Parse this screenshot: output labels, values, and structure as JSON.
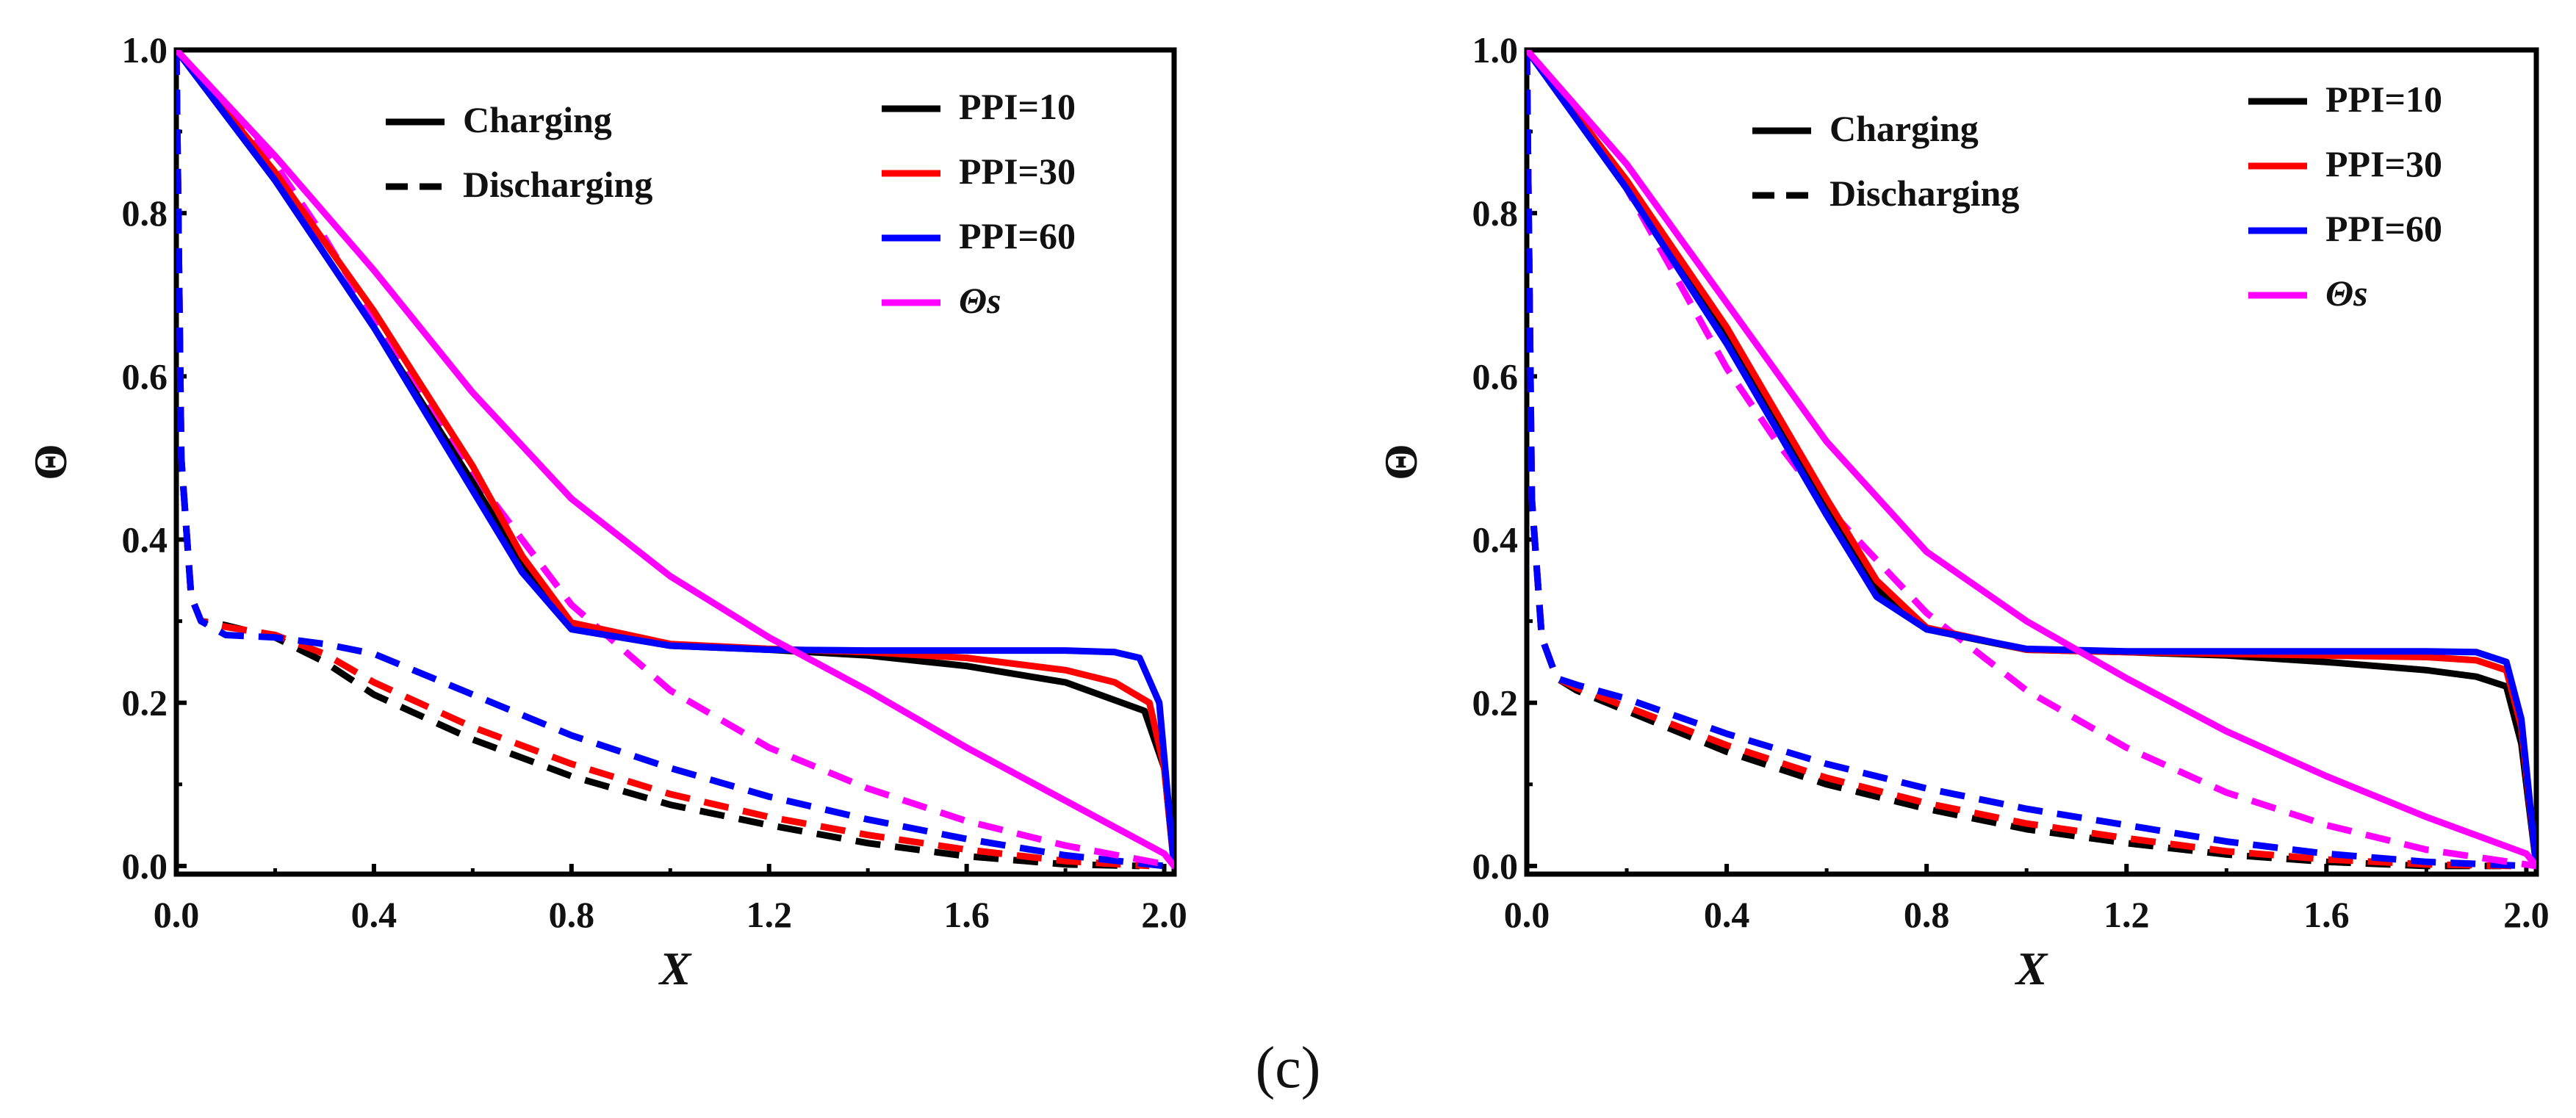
{
  "figure": {
    "caption": "(c)"
  },
  "colors": {
    "PPI=10": "#000000",
    "PPI=30": "#ff0000",
    "PPI=60": "#0000ff",
    "theta_s": "#ff00ff"
  },
  "chart_data": [
    {
      "type": "line",
      "xlabel": "X",
      "ylabel": "Θ",
      "xlim": [
        0,
        2.02
      ],
      "ylim": [
        -0.01,
        1.0
      ],
      "xticks": [
        "0.0",
        "0.4",
        "0.8",
        "1.2",
        "1.6",
        "2.0"
      ],
      "yticks": [
        "0.0",
        "0.2",
        "0.4",
        "0.6",
        "0.8",
        "1.0"
      ],
      "style_legend": [
        {
          "label": "Charging",
          "style": "solid"
        },
        {
          "label": "Discharging",
          "style": "dashed"
        }
      ],
      "series_legend": [
        {
          "label": "PPI=10",
          "color_key": "PPI=10"
        },
        {
          "label": "PPI=30",
          "color_key": "PPI=30"
        },
        {
          "label": "PPI=60",
          "color_key": "PPI=60"
        },
        {
          "label": "Θs",
          "color_key": "theta_s",
          "italic": true
        }
      ],
      "series": [
        {
          "color_key": "PPI=10",
          "style": "solid",
          "x": [
            0,
            0.2,
            0.4,
            0.6,
            0.7,
            0.8,
            1.0,
            1.2,
            1.4,
            1.6,
            1.8,
            1.96,
            2.0,
            2.02
          ],
          "y": [
            1.0,
            0.84,
            0.66,
            0.47,
            0.37,
            0.293,
            0.27,
            0.265,
            0.258,
            0.245,
            0.225,
            0.19,
            0.12,
            0.0
          ]
        },
        {
          "color_key": "PPI=30",
          "style": "solid",
          "x": [
            0,
            0.2,
            0.4,
            0.6,
            0.7,
            0.8,
            1.0,
            1.2,
            1.4,
            1.6,
            1.8,
            1.9,
            1.97,
            2.0,
            2.02
          ],
          "y": [
            1.0,
            0.85,
            0.68,
            0.49,
            0.38,
            0.298,
            0.272,
            0.266,
            0.262,
            0.255,
            0.24,
            0.225,
            0.2,
            0.12,
            0.0
          ]
        },
        {
          "color_key": "PPI=60",
          "style": "solid",
          "x": [
            0,
            0.2,
            0.4,
            0.6,
            0.7,
            0.8,
            1.0,
            1.2,
            1.4,
            1.6,
            1.8,
            1.9,
            1.95,
            1.99,
            2.02
          ],
          "y": [
            1.0,
            0.84,
            0.66,
            0.46,
            0.36,
            0.29,
            0.27,
            0.265,
            0.264,
            0.264,
            0.264,
            0.262,
            0.255,
            0.2,
            0.0
          ]
        },
        {
          "color_key": "theta_s",
          "style": "solid",
          "x": [
            0,
            0.2,
            0.4,
            0.6,
            0.8,
            1.0,
            1.2,
            1.4,
            1.6,
            1.8,
            2.0,
            2.02
          ],
          "y": [
            1.0,
            0.87,
            0.73,
            0.58,
            0.45,
            0.355,
            0.28,
            0.215,
            0.145,
            0.08,
            0.015,
            0.0
          ]
        },
        {
          "color_key": "PPI=10",
          "style": "dashed",
          "x": [
            0,
            0.01,
            0.03,
            0.05,
            0.1,
            0.2,
            0.3,
            0.4,
            0.6,
            0.8,
            1.0,
            1.2,
            1.4,
            1.6,
            1.8,
            1.95
          ],
          "y": [
            1.0,
            0.5,
            0.33,
            0.3,
            0.295,
            0.28,
            0.25,
            0.21,
            0.155,
            0.11,
            0.075,
            0.05,
            0.028,
            0.012,
            0.002,
            0.0
          ]
        },
        {
          "color_key": "PPI=30",
          "style": "dashed",
          "x": [
            0,
            0.01,
            0.03,
            0.05,
            0.1,
            0.2,
            0.3,
            0.4,
            0.6,
            0.8,
            1.0,
            1.2,
            1.4,
            1.6,
            1.8,
            1.97
          ],
          "y": [
            1.0,
            0.5,
            0.33,
            0.3,
            0.293,
            0.283,
            0.26,
            0.225,
            0.17,
            0.125,
            0.088,
            0.06,
            0.038,
            0.02,
            0.006,
            0.0
          ]
        },
        {
          "color_key": "PPI=60",
          "style": "dashed",
          "x": [
            0,
            0.01,
            0.03,
            0.05,
            0.1,
            0.2,
            0.3,
            0.4,
            0.6,
            0.8,
            1.0,
            1.2,
            1.4,
            1.6,
            1.8,
            2.0
          ],
          "y": [
            1.0,
            0.5,
            0.33,
            0.3,
            0.283,
            0.28,
            0.272,
            0.26,
            0.21,
            0.16,
            0.12,
            0.085,
            0.057,
            0.033,
            0.013,
            0.0
          ]
        },
        {
          "color_key": "theta_s",
          "style": "dashed",
          "x": [
            0,
            0.1,
            0.2,
            0.3,
            0.4,
            0.5,
            0.6,
            0.8,
            1.0,
            1.2,
            1.4,
            1.6,
            1.8,
            2.02
          ],
          "y": [
            1.0,
            0.93,
            0.86,
            0.77,
            0.67,
            0.57,
            0.48,
            0.32,
            0.215,
            0.145,
            0.095,
            0.055,
            0.025,
            0.0
          ]
        }
      ]
    },
    {
      "type": "line",
      "xlabel": "X",
      "ylabel": "Θ",
      "xlim": [
        0,
        2.02
      ],
      "ylim": [
        -0.01,
        1.0
      ],
      "xticks": [
        "0.0",
        "0.4",
        "0.8",
        "1.2",
        "1.6",
        "2.0"
      ],
      "yticks": [
        "0.0",
        "0.2",
        "0.4",
        "0.6",
        "0.8",
        "1.0"
      ],
      "style_legend": [
        {
          "label": "Charging",
          "style": "solid"
        },
        {
          "label": "Discharging",
          "style": "dashed"
        }
      ],
      "series_legend": [
        {
          "label": "PPI=10",
          "color_key": "PPI=10"
        },
        {
          "label": "PPI=30",
          "color_key": "PPI=30"
        },
        {
          "label": "PPI=60",
          "color_key": "PPI=60"
        },
        {
          "label": "Θs",
          "color_key": "theta_s",
          "italic": true
        }
      ],
      "series": [
        {
          "color_key": "PPI=10",
          "style": "solid",
          "x": [
            0,
            0.2,
            0.4,
            0.6,
            0.7,
            0.8,
            1.0,
            1.2,
            1.4,
            1.6,
            1.8,
            1.9,
            1.96,
            1.99,
            2.02
          ],
          "y": [
            1.0,
            0.84,
            0.65,
            0.44,
            0.34,
            0.29,
            0.265,
            0.262,
            0.258,
            0.25,
            0.24,
            0.232,
            0.22,
            0.15,
            0.0
          ]
        },
        {
          "color_key": "PPI=30",
          "style": "solid",
          "x": [
            0,
            0.2,
            0.4,
            0.6,
            0.7,
            0.8,
            1.0,
            1.2,
            1.4,
            1.6,
            1.8,
            1.9,
            1.96,
            1.99,
            2.02
          ],
          "y": [
            1.0,
            0.84,
            0.66,
            0.45,
            0.35,
            0.292,
            0.265,
            0.262,
            0.26,
            0.258,
            0.256,
            0.252,
            0.24,
            0.17,
            0.0
          ]
        },
        {
          "color_key": "PPI=60",
          "style": "solid",
          "x": [
            0,
            0.2,
            0.4,
            0.6,
            0.7,
            0.8,
            1.0,
            1.2,
            1.4,
            1.6,
            1.8,
            1.9,
            1.96,
            1.99,
            2.02
          ],
          "y": [
            1.0,
            0.83,
            0.64,
            0.43,
            0.33,
            0.29,
            0.266,
            0.263,
            0.263,
            0.263,
            0.263,
            0.262,
            0.25,
            0.18,
            0.0
          ]
        },
        {
          "color_key": "theta_s",
          "style": "solid",
          "x": [
            0,
            0.2,
            0.4,
            0.6,
            0.8,
            1.0,
            1.2,
            1.4,
            1.6,
            1.8,
            2.0,
            2.02
          ],
          "y": [
            1.0,
            0.86,
            0.69,
            0.52,
            0.385,
            0.3,
            0.23,
            0.165,
            0.11,
            0.06,
            0.015,
            0.0
          ]
        },
        {
          "color_key": "PPI=10",
          "style": "dashed",
          "x": [
            0,
            0.01,
            0.03,
            0.06,
            0.1,
            0.2,
            0.4,
            0.6,
            0.8,
            1.0,
            1.2,
            1.4,
            1.6,
            1.8,
            1.95
          ],
          "y": [
            1.0,
            0.45,
            0.28,
            0.23,
            0.215,
            0.19,
            0.14,
            0.1,
            0.07,
            0.045,
            0.028,
            0.014,
            0.005,
            0.0,
            0.0
          ]
        },
        {
          "color_key": "PPI=30",
          "style": "dashed",
          "x": [
            0,
            0.01,
            0.03,
            0.06,
            0.1,
            0.2,
            0.4,
            0.6,
            0.8,
            1.0,
            1.2,
            1.4,
            1.6,
            1.8,
            1.97
          ],
          "y": [
            1.0,
            0.45,
            0.28,
            0.23,
            0.218,
            0.195,
            0.148,
            0.108,
            0.077,
            0.052,
            0.034,
            0.018,
            0.008,
            0.002,
            0.0
          ]
        },
        {
          "color_key": "PPI=60",
          "style": "dashed",
          "x": [
            0,
            0.01,
            0.03,
            0.06,
            0.1,
            0.2,
            0.4,
            0.6,
            0.8,
            1.0,
            1.2,
            1.4,
            1.6,
            1.8,
            2.0
          ],
          "y": [
            1.0,
            0.45,
            0.28,
            0.23,
            0.222,
            0.205,
            0.162,
            0.125,
            0.095,
            0.07,
            0.05,
            0.03,
            0.015,
            0.005,
            0.0
          ]
        },
        {
          "color_key": "theta_s",
          "style": "dashed",
          "x": [
            0,
            0.1,
            0.2,
            0.3,
            0.4,
            0.5,
            0.6,
            0.8,
            1.0,
            1.2,
            1.4,
            1.6,
            1.8,
            2.02
          ],
          "y": [
            1.0,
            0.92,
            0.83,
            0.72,
            0.61,
            0.52,
            0.44,
            0.31,
            0.215,
            0.145,
            0.09,
            0.05,
            0.02,
            0.0
          ]
        }
      ]
    }
  ]
}
